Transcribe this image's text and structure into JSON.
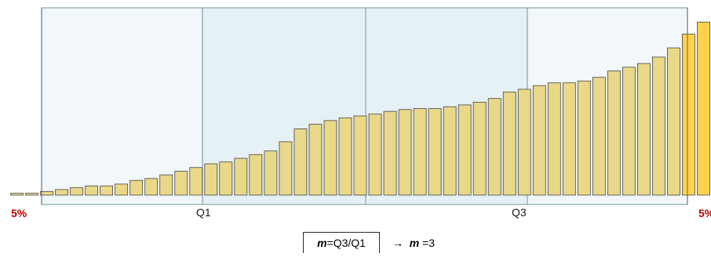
{
  "chart_data": {
    "type": "bar",
    "values": [
      2,
      2,
      4,
      6,
      8,
      10,
      10,
      12,
      16,
      18,
      22,
      26,
      30,
      34,
      36,
      40,
      44,
      48,
      58,
      72,
      77,
      81,
      84,
      86,
      88,
      91,
      93,
      94,
      94,
      96,
      98,
      101,
      105,
      112,
      115,
      119,
      122,
      122,
      124,
      128,
      135,
      139,
      143,
      150,
      160,
      175,
      188
    ],
    "ylim": [
      0,
      195
    ],
    "highlight_last_color": "#ffd24a",
    "bar_fill": "#ead889",
    "bar_stroke": "#444444",
    "region_fill_outer": "#f1f7fa",
    "region_fill_inner": "#e5f1f4",
    "region_stroke": "#8aa7ad",
    "percentile_left_label": "5%",
    "percentile_right_label": "5%",
    "q1_label": "Q1",
    "q3_label": "Q3"
  },
  "formula": {
    "m_symbol": "m",
    "box_text": " =Q3/Q1",
    "arrow": "→",
    "result_symbol": "m",
    "result_text": " =3"
  },
  "colors": {
    "percent_label": "#c00000"
  }
}
